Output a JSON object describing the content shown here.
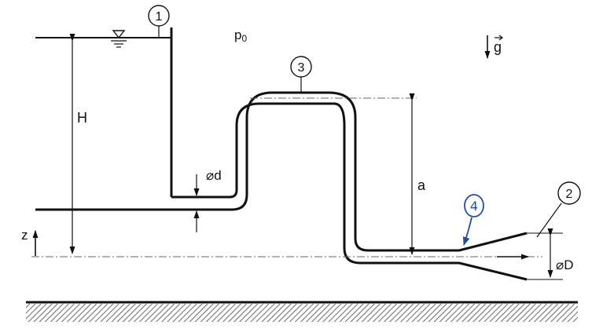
{
  "labels": {
    "point_1": "1",
    "point_2": "2",
    "point_3": "3",
    "point_4": "4",
    "ambient_pressure": "p",
    "ambient_pressure_sub": "0",
    "gravity": "g",
    "height_H": "H",
    "height_a": "a",
    "inner_diameter": "⌀d",
    "outer_diameter": "⌀D",
    "axis_z": "z"
  },
  "colors": {
    "ink": "#111111",
    "handwriting": "#1f4fa8",
    "ground_hatch": "#444444"
  }
}
